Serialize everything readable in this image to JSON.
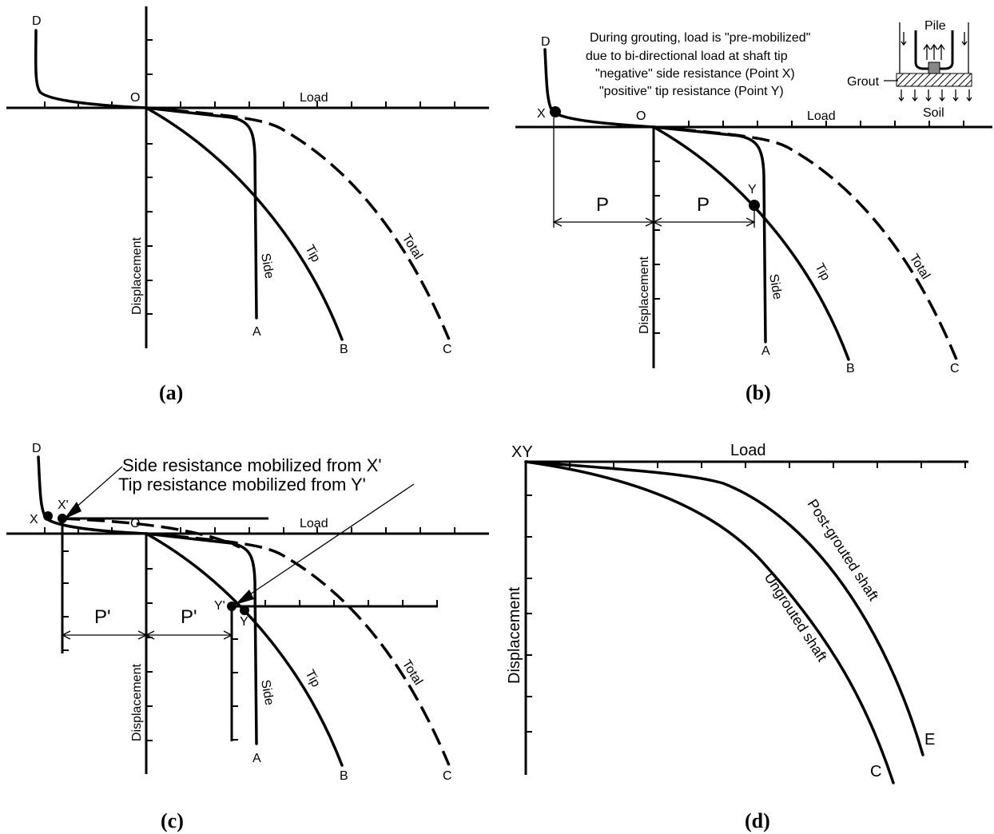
{
  "panels": {
    "a": {
      "caption": "(a)",
      "labels": {
        "d": "D",
        "o": "O",
        "load": "Load",
        "displacement": "Displacement",
        "side": "Side",
        "tip": "Tip",
        "total": "Total",
        "a": "A",
        "b": "B",
        "c": "C"
      }
    },
    "b": {
      "caption": "(b)",
      "labels": {
        "d": "D",
        "o": "O",
        "x": "X",
        "y": "Y",
        "load": "Load",
        "displacement": "Displacement",
        "side": "Side",
        "tip": "Tip",
        "total": "Total",
        "a": "A",
        "b": "B",
        "c": "C",
        "p1": "P",
        "p2": "P"
      },
      "note": [
        "During grouting, load is \"pre-mobilized\"",
        "due to bi-directional load at shaft tip",
        "\"negative\" side resistance (Point X)",
        "\"positive\" tip resistance (Point Y)"
      ],
      "inset": {
        "pile": "Pile",
        "grout": "Grout",
        "soil": "Soil"
      }
    },
    "c": {
      "caption": "(c)",
      "labels": {
        "d": "D",
        "o": "O",
        "x": "X",
        "x_prime": "X'",
        "y": "Y",
        "y_prime": "Y'",
        "load": "Load",
        "displacement": "Displacement",
        "side": "Side",
        "tip": "Tip",
        "total": "Total",
        "a": "A",
        "b": "B",
        "c": "C",
        "p1": "P'",
        "p2": "P'"
      },
      "note_side": "Side resistance mobilized from X'",
      "note_tip": "Tip resistance mobilized from Y'"
    },
    "d": {
      "caption": "(d)",
      "labels": {
        "xy": "XY",
        "load": "Load",
        "displacement": "Displacement",
        "post": "Post-grouted shaft",
        "ungrouted": "Ungrouted shaft",
        "e": "E",
        "c": "C"
      }
    }
  }
}
